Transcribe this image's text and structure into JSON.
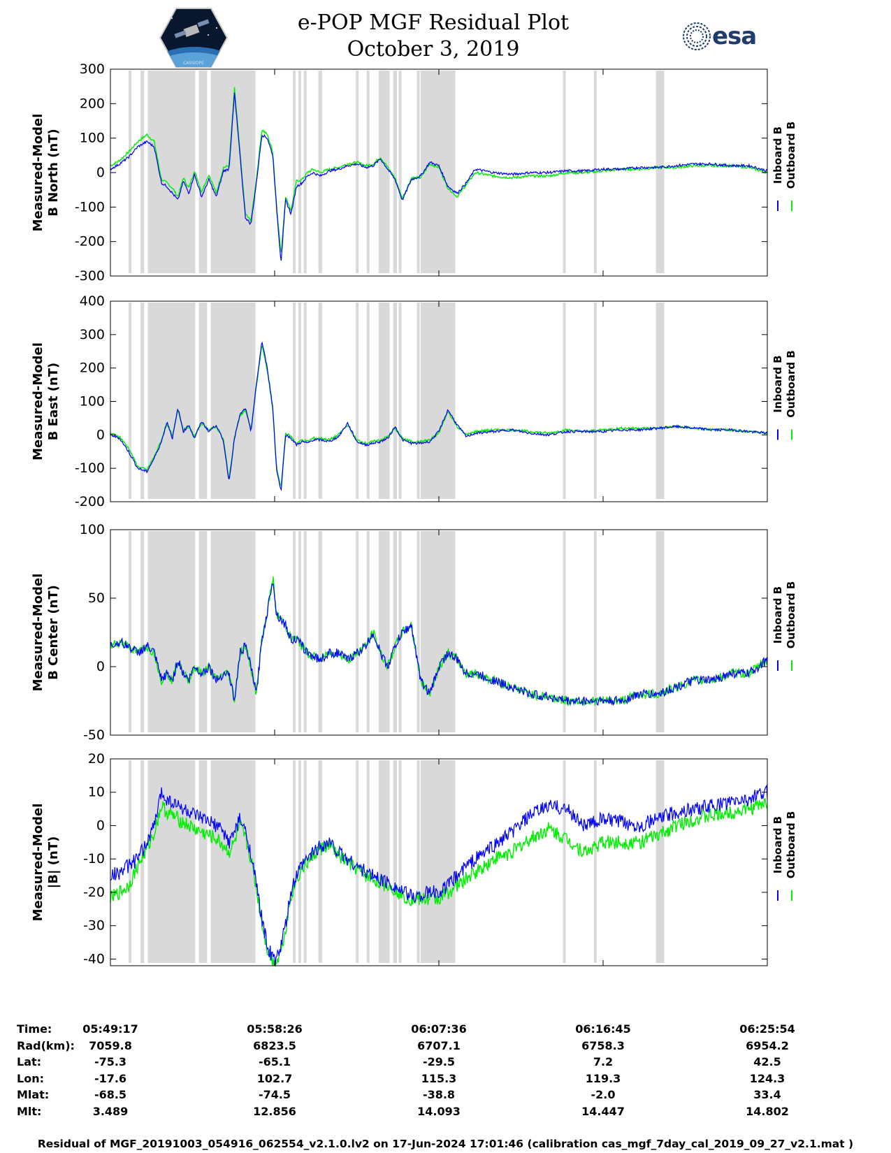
{
  "header": {
    "title_line1": "e-POP MGF Residual Plot",
    "title_line2": "October 3, 2019",
    "mission_logo_text": "CASSIOPE",
    "agency_logo_text": "esa"
  },
  "colors": {
    "inboard": "#0000ff",
    "outboard": "#00ee00",
    "shade": "#d9d9d9"
  },
  "legend": {
    "inboard_label": "Inboard B",
    "outboard_label": "Outboard B"
  },
  "chart_data": [
    {
      "type": "line",
      "ylabel_line1": "Measured-Model",
      "ylabel_line2": "B North (nT)",
      "ylim": [
        -300,
        300
      ],
      "yticks": [
        300,
        200,
        100,
        0,
        -100,
        -200,
        -300
      ],
      "x": [
        0,
        0.5,
        1.0,
        1.5,
        2.0,
        2.4,
        2.8,
        3.1,
        3.4,
        3.7,
        4.0,
        4.3,
        4.6,
        5.0,
        5.4,
        5.8,
        6.2,
        6.5,
        6.8,
        7.1,
        7.4,
        7.7,
        8.0,
        8.3,
        8.6,
        8.9,
        9.1,
        9.35,
        9.6,
        9.9,
        10.2,
        10.5,
        10.8,
        11.1,
        11.5,
        12.0,
        12.5,
        13.0,
        13.5,
        14.0,
        14.4,
        14.8,
        15.2,
        15.6,
        16.0,
        16.5,
        17.0,
        17.5,
        18.0,
        18.5,
        19.0,
        19.5,
        20.0,
        21.0,
        22.0,
        23.0,
        24.0,
        25.0,
        26.0,
        27.0,
        28.0,
        29.0,
        30.0,
        31.0,
        32.0,
        33.0,
        34.0,
        35.0,
        36.0
      ],
      "series": [
        {
          "name": "Inboard B",
          "values": [
            10,
            25,
            45,
            75,
            90,
            75,
            -30,
            -40,
            -60,
            -80,
            -25,
            -60,
            -5,
            -70,
            -20,
            -70,
            5,
            10,
            230,
            50,
            -130,
            -150,
            -30,
            110,
            100,
            50,
            -100,
            -260,
            -80,
            -120,
            -40,
            -30,
            -10,
            0,
            -10,
            5,
            10,
            20,
            25,
            15,
            20,
            40,
            10,
            -20,
            -80,
            -20,
            -10,
            30,
            20,
            -40,
            -60,
            -30,
            10,
            0,
            -5,
            0,
            0,
            5,
            5,
            10,
            10,
            15,
            15,
            20,
            25,
            25,
            20,
            20,
            5
          ]
        },
        {
          "name": "Outboard B",
          "values": [
            20,
            35,
            60,
            90,
            110,
            90,
            -20,
            -30,
            -45,
            -70,
            -15,
            -45,
            5,
            -55,
            -5,
            -60,
            15,
            20,
            245,
            60,
            -120,
            -140,
            -20,
            125,
            110,
            60,
            -90,
            -240,
            -70,
            -110,
            -25,
            -20,
            0,
            10,
            0,
            10,
            15,
            25,
            30,
            20,
            25,
            45,
            15,
            -15,
            -75,
            -15,
            -15,
            25,
            15,
            -45,
            -70,
            -35,
            0,
            -10,
            -15,
            -10,
            -10,
            0,
            0,
            5,
            10,
            10,
            15,
            15,
            20,
            20,
            20,
            15,
            0
          ]
        }
      ]
    },
    {
      "type": "line",
      "ylabel_line1": "Measured-Model",
      "ylabel_line2": "B East (nT)",
      "ylim": [
        -200,
        400
      ],
      "yticks": [
        400,
        300,
        200,
        100,
        0,
        -100,
        -200
      ],
      "x": [
        0,
        0.5,
        1.0,
        1.5,
        2.0,
        2.4,
        2.8,
        3.1,
        3.4,
        3.7,
        4.0,
        4.3,
        4.6,
        5.0,
        5.4,
        5.8,
        6.2,
        6.5,
        6.8,
        7.1,
        7.4,
        7.7,
        8.0,
        8.3,
        8.6,
        8.9,
        9.1,
        9.35,
        9.6,
        9.9,
        10.2,
        10.5,
        10.8,
        11.1,
        11.5,
        12.0,
        12.5,
        13.0,
        13.5,
        14.0,
        14.4,
        14.8,
        15.2,
        15.6,
        16.0,
        16.5,
        17.0,
        17.5,
        18.0,
        18.5,
        19.0,
        19.5,
        20.0,
        21.0,
        22.0,
        23.0,
        24.0,
        25.0,
        26.0,
        27.0,
        28.0,
        29.0,
        30.0,
        31.0,
        32.0,
        33.0,
        34.0,
        35.0,
        36.0
      ],
      "series": [
        {
          "name": "Inboard B",
          "values": [
            0,
            -10,
            -50,
            -100,
            -110,
            -70,
            -20,
            40,
            -10,
            80,
            10,
            30,
            -10,
            40,
            10,
            30,
            -20,
            -140,
            -10,
            60,
            80,
            10,
            150,
            280,
            200,
            80,
            -100,
            -170,
            0,
            -10,
            -30,
            -20,
            -25,
            -15,
            -15,
            -20,
            -5,
            35,
            -20,
            -30,
            -25,
            -20,
            -10,
            25,
            -15,
            -25,
            -25,
            -20,
            10,
            75,
            30,
            -5,
            5,
            10,
            15,
            5,
            0,
            10,
            10,
            10,
            15,
            15,
            20,
            25,
            20,
            15,
            15,
            10,
            5
          ]
        },
        {
          "name": "Outboard B",
          "values": [
            5,
            -5,
            -40,
            -95,
            -105,
            -65,
            -15,
            35,
            -5,
            75,
            15,
            25,
            -5,
            35,
            15,
            25,
            -15,
            -135,
            -5,
            55,
            75,
            15,
            145,
            270,
            190,
            75,
            -95,
            -160,
            5,
            -5,
            -25,
            -15,
            -20,
            -10,
            -10,
            -15,
            0,
            30,
            -15,
            -25,
            -20,
            -15,
            -5,
            20,
            -10,
            -20,
            -20,
            -15,
            5,
            70,
            25,
            0,
            10,
            15,
            15,
            10,
            5,
            15,
            10,
            15,
            20,
            20,
            20,
            25,
            20,
            15,
            15,
            10,
            5
          ]
        }
      ]
    },
    {
      "type": "line",
      "ylabel_line1": "Measured-Model",
      "ylabel_line2": "B Center (nT)",
      "ylim": [
        -50,
        100
      ],
      "yticks": [
        100,
        50,
        0,
        -50
      ],
      "x": [
        0,
        0.5,
        1.0,
        1.5,
        2.0,
        2.4,
        2.8,
        3.1,
        3.4,
        3.7,
        4.0,
        4.3,
        4.6,
        5.0,
        5.4,
        5.8,
        6.2,
        6.5,
        6.8,
        7.1,
        7.4,
        7.7,
        8.0,
        8.3,
        8.6,
        8.9,
        9.1,
        9.35,
        9.6,
        9.9,
        10.2,
        10.5,
        10.8,
        11.1,
        11.5,
        12.0,
        12.5,
        13.0,
        13.5,
        14.0,
        14.4,
        14.8,
        15.2,
        15.6,
        16.0,
        16.5,
        17.0,
        17.5,
        18.0,
        18.5,
        19.0,
        19.5,
        20.0,
        21.0,
        22.0,
        23.0,
        24.0,
        25.0,
        26.0,
        27.0,
        28.0,
        29.0,
        30.0,
        31.0,
        32.0,
        33.0,
        34.0,
        35.0,
        36.0
      ],
      "series": [
        {
          "name": "Inboard B",
          "values": [
            15,
            18,
            15,
            10,
            15,
            10,
            -10,
            -5,
            -10,
            5,
            -5,
            -10,
            0,
            -5,
            0,
            -10,
            -5,
            -5,
            -25,
            10,
            15,
            0,
            -20,
            20,
            40,
            65,
            38,
            35,
            30,
            20,
            20,
            15,
            10,
            8,
            5,
            10,
            10,
            5,
            10,
            15,
            25,
            10,
            0,
            15,
            25,
            30,
            -10,
            -20,
            0,
            10,
            5,
            -5,
            -5,
            -10,
            -15,
            -20,
            -22,
            -25,
            -25,
            -25,
            -25,
            -20,
            -20,
            -15,
            -10,
            -10,
            -5,
            -5,
            5
          ]
        },
        {
          "name": "Outboard B",
          "values": [
            15,
            18,
            15,
            10,
            15,
            10,
            -10,
            -5,
            -10,
            5,
            -5,
            -10,
            0,
            -5,
            0,
            -10,
            -5,
            -5,
            -25,
            10,
            15,
            0,
            -20,
            20,
            40,
            65,
            38,
            35,
            30,
            20,
            20,
            15,
            10,
            8,
            5,
            10,
            10,
            5,
            10,
            15,
            25,
            10,
            0,
            15,
            25,
            30,
            -10,
            -20,
            0,
            10,
            5,
            -5,
            -5,
            -10,
            -15,
            -20,
            -22,
            -25,
            -25,
            -25,
            -25,
            -20,
            -20,
            -15,
            -10,
            -10,
            -5,
            -5,
            5
          ]
        }
      ]
    },
    {
      "type": "line",
      "ylabel_line1": "Measured-Model",
      "ylabel_line2": "|B| (nT)",
      "ylim": [
        -42,
        20
      ],
      "yticks": [
        20,
        10,
        0,
        -10,
        -20,
        -30,
        -40
      ],
      "x": [
        0,
        0.5,
        1.0,
        1.5,
        2.0,
        2.4,
        2.8,
        3.1,
        3.4,
        3.7,
        4.0,
        4.3,
        4.6,
        5.0,
        5.4,
        5.8,
        6.2,
        6.5,
        6.8,
        7.1,
        7.4,
        7.7,
        8.0,
        8.3,
        8.6,
        8.9,
        9.1,
        9.35,
        9.6,
        9.9,
        10.2,
        10.5,
        10.8,
        11.1,
        11.5,
        12.0,
        12.5,
        13.0,
        13.5,
        14.0,
        14.4,
        14.8,
        15.2,
        15.6,
        16.0,
        16.5,
        17.0,
        17.5,
        18.0,
        18.5,
        19.0,
        19.5,
        20.0,
        21.0,
        22.0,
        23.0,
        24.0,
        25.0,
        26.0,
        27.0,
        28.0,
        29.0,
        30.0,
        31.0,
        32.0,
        33.0,
        34.0,
        35.0,
        36.0
      ],
      "series": [
        {
          "name": "Inboard B",
          "values": [
            -15,
            -14,
            -12,
            -10,
            -5,
            0,
            10,
            8,
            7,
            6,
            5,
            4,
            3,
            2,
            1,
            0,
            -2,
            -5,
            -2,
            2,
            -2,
            -8,
            -18,
            -28,
            -36,
            -40,
            -40,
            -36,
            -30,
            -20,
            -15,
            -12,
            -10,
            -8,
            -6,
            -5,
            -8,
            -10,
            -12,
            -14,
            -15,
            -16,
            -17,
            -18,
            -20,
            -21,
            -21,
            -20,
            -20,
            -18,
            -15,
            -12,
            -10,
            -6,
            -2,
            3,
            6,
            5,
            0,
            2,
            1,
            0,
            2,
            4,
            5,
            6,
            7,
            8,
            10
          ]
        },
        {
          "name": "Outboard B",
          "values": [
            -22,
            -20,
            -18,
            -12,
            -7,
            -2,
            6,
            4,
            3,
            2,
            1,
            0,
            -1,
            -2,
            -3,
            -4,
            -6,
            -8,
            -5,
            0,
            -4,
            -10,
            -19,
            -29,
            -37,
            -41,
            -41,
            -37,
            -31,
            -21,
            -16,
            -13,
            -11,
            -9,
            -7,
            -6,
            -9,
            -11,
            -13,
            -15,
            -16,
            -17,
            -18,
            -19,
            -21,
            -22,
            -22,
            -22,
            -22,
            -20,
            -18,
            -16,
            -14,
            -10,
            -8,
            -4,
            -1,
            -4,
            -8,
            -5,
            -5,
            -5,
            -3,
            0,
            2,
            3,
            4,
            5,
            7
          ]
        }
      ]
    }
  ],
  "shaded_intervals": [
    [
      1.0,
      1.15
    ],
    [
      1.65,
      1.85
    ],
    [
      2.05,
      4.65
    ],
    [
      4.85,
      5.3
    ],
    [
      5.5,
      7.95
    ],
    [
      10.0,
      10.15
    ],
    [
      10.3,
      10.45
    ],
    [
      10.6,
      10.75
    ],
    [
      11.4,
      11.6
    ],
    [
      13.45,
      13.6
    ],
    [
      14.05,
      14.2
    ],
    [
      14.7,
      15.3
    ],
    [
      15.5,
      15.7
    ],
    [
      15.8,
      15.95
    ],
    [
      16.8,
      16.95
    ],
    [
      17.0,
      18.9
    ],
    [
      24.8,
      24.95
    ],
    [
      26.5,
      26.65
    ],
    [
      29.9,
      30.35
    ]
  ],
  "x_axis": {
    "range_minutes": [
      0,
      36
    ],
    "major_ticks": [
      0,
      9,
      18,
      27,
      36
    ]
  },
  "ephemeris": {
    "labels": [
      "Time:",
      "Rad(km):",
      "Lat:",
      "Lon:",
      "Mlat:",
      "Mlt:"
    ],
    "columns": [
      [
        "05:49:17",
        "7059.8",
        "-75.3",
        "-17.6",
        "-68.5",
        "3.489"
      ],
      [
        "05:58:26",
        "6823.5",
        "-65.1",
        "102.7",
        "-74.5",
        "12.856"
      ],
      [
        "06:07:36",
        "6707.1",
        "-29.5",
        "115.3",
        "-38.8",
        "14.093"
      ],
      [
        "06:16:45",
        "6758.3",
        "7.2",
        "119.3",
        "-2.0",
        "14.447"
      ],
      [
        "06:25:54",
        "6954.2",
        "42.5",
        "124.3",
        "33.4",
        "14.802"
      ]
    ]
  },
  "footer": "Residual of MGF_20191003_054916_062554_v2.1.0.lv2 on 17-Jun-2024 17:01:46 (calibration cas_mgf_7day_cal_2019_09_27_v2.1.mat )"
}
